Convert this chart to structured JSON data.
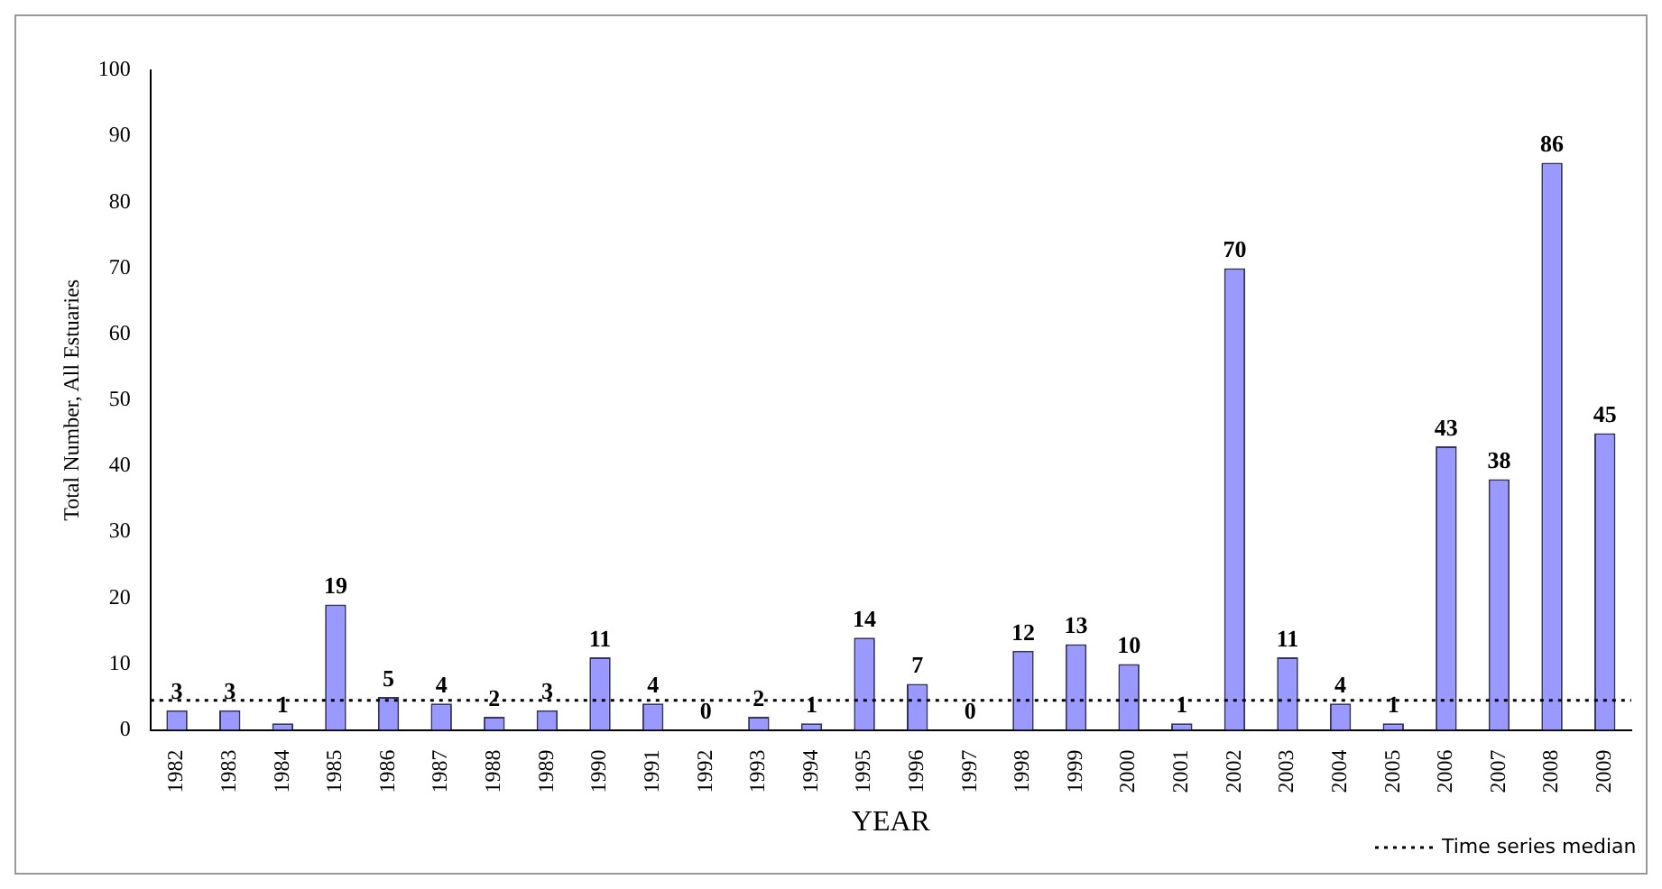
{
  "chart_data": {
    "type": "bar",
    "xlabel": "YEAR",
    "ylabel": "Total Number, All Estuaries",
    "categories": [
      "1982",
      "1983",
      "1984",
      "1985",
      "1986",
      "1987",
      "1988",
      "1989",
      "1990",
      "1991",
      "1992",
      "1993",
      "1994",
      "1995",
      "1996",
      "1997",
      "1998",
      "1999",
      "2000",
      "2001",
      "2002",
      "2003",
      "2004",
      "2005",
      "2006",
      "2007",
      "2008",
      "2009"
    ],
    "values": [
      3,
      3,
      1,
      19,
      5,
      4,
      2,
      3,
      11,
      4,
      0,
      2,
      1,
      14,
      7,
      0,
      12,
      13,
      10,
      1,
      70,
      11,
      4,
      1,
      43,
      38,
      86,
      45
    ],
    "color": "#9999ff",
    "ylim": [
      0,
      100
    ],
    "yticks": [
      0,
      10,
      20,
      30,
      40,
      50,
      60,
      70,
      80,
      90,
      100
    ],
    "grid": false,
    "data_labels": true,
    "ref_lines": [
      {
        "axis": "y",
        "value": 4.5,
        "label": "Time series median",
        "color": "#000000",
        "line_style": "dotted"
      }
    ]
  }
}
